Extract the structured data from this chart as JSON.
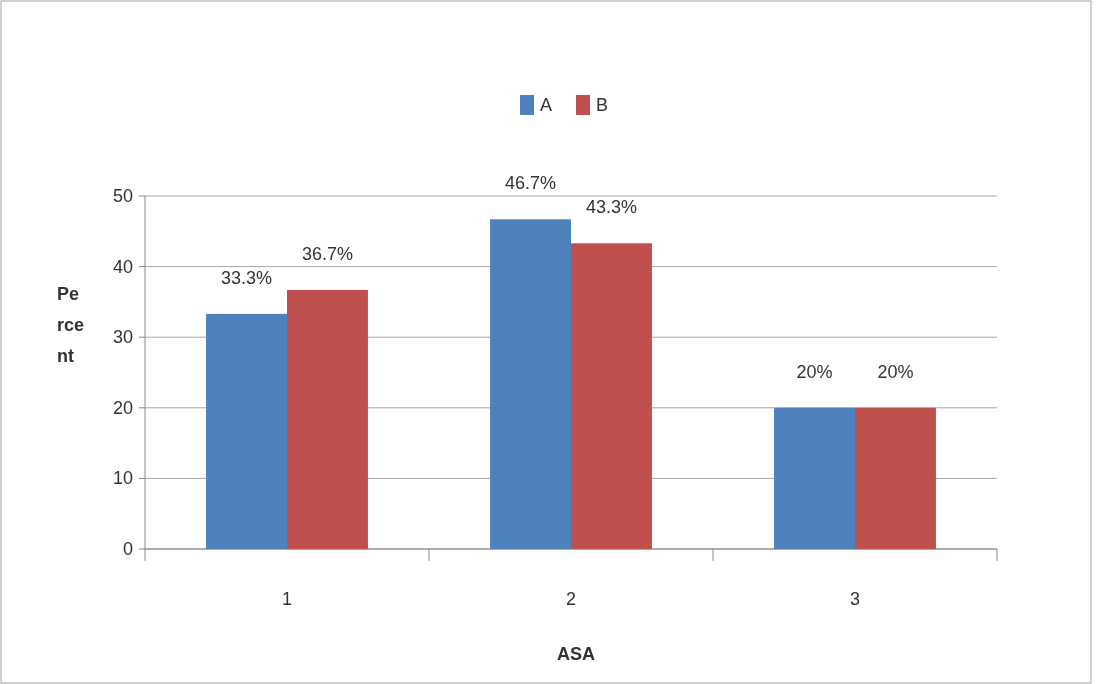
{
  "chart_data": {
    "type": "bar",
    "xlabel": "ASA",
    "ylabel": "Percent",
    "categories": [
      "1",
      "2",
      "3"
    ],
    "series": [
      {
        "name": "A",
        "color": "#4f81bd",
        "values": [
          33.3,
          46.7,
          20
        ],
        "value_labels": [
          "33.3%",
          "46.7%",
          "20%"
        ]
      },
      {
        "name": "B",
        "color": "#c0504d",
        "values": [
          36.7,
          43.3,
          20
        ],
        "value_labels": [
          "36.7%",
          "43.3%",
          "20%"
        ]
      }
    ],
    "ylim": [
      0,
      50
    ],
    "yticks": [
      0,
      10,
      20,
      30,
      40,
      50
    ],
    "grid": "y",
    "legend": "top"
  }
}
